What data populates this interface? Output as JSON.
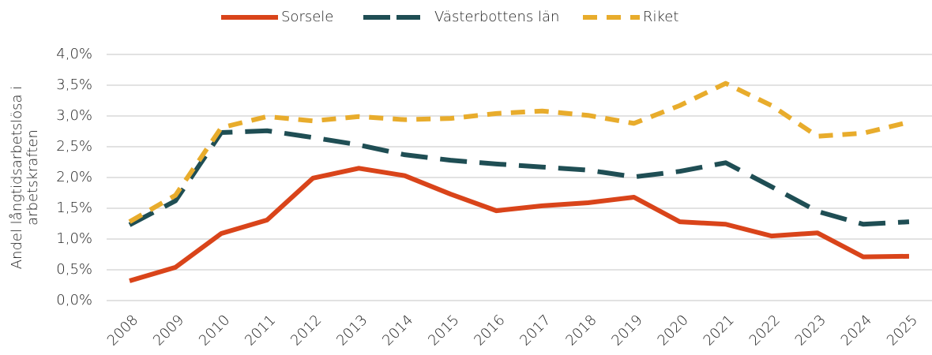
{
  "chart_data": {
    "type": "line",
    "ylabel": [
      "Andel långtidsarbetslösa i",
      "arbetskraften"
    ],
    "categories": [
      "2008",
      "2009",
      "2010",
      "2011",
      "2012",
      "2013",
      "2014",
      "2015",
      "2016",
      "2017",
      "2018",
      "2019",
      "2020",
      "2021",
      "2022",
      "2023",
      "2024",
      "2025"
    ],
    "series": [
      {
        "name": "Sorsele",
        "color": "#d9441a",
        "dash": "solid",
        "values": [
          0.32,
          0.54,
          1.09,
          1.31,
          1.99,
          2.15,
          2.03,
          1.73,
          1.46,
          1.54,
          1.59,
          1.68,
          1.28,
          1.24,
          1.05,
          1.1,
          0.71,
          0.72
        ]
      },
      {
        "name": "Västerbottens län",
        "color": "#1f4e54",
        "dash": "long",
        "values": [
          1.23,
          1.62,
          2.73,
          2.76,
          2.65,
          2.53,
          2.37,
          2.28,
          2.22,
          2.17,
          2.12,
          2.01,
          2.1,
          2.24,
          1.85,
          1.45,
          1.24,
          1.28
        ]
      },
      {
        "name": "Riket",
        "color": "#e8ac2c",
        "dash": "short",
        "values": [
          1.28,
          1.71,
          2.81,
          2.99,
          2.92,
          2.99,
          2.94,
          2.96,
          3.04,
          3.08,
          3.01,
          2.88,
          3.17,
          3.53,
          3.17,
          2.67,
          2.72,
          2.9
        ]
      }
    ],
    "ylim": [
      0,
      4
    ],
    "yticks": [
      {
        "value": 0,
        "label": "0,0%"
      },
      {
        "value": 0.5,
        "label": "0,5%"
      },
      {
        "value": 1,
        "label": "1,0%"
      },
      {
        "value": 1.5,
        "label": "1,5%"
      },
      {
        "value": 2,
        "label": "2,0%"
      },
      {
        "value": 2.5,
        "label": "2,5%"
      },
      {
        "value": 3,
        "label": "3,0%"
      },
      {
        "value": 3.5,
        "label": "3,5%"
      },
      {
        "value": 4,
        "label": "4,0%"
      }
    ],
    "grid": true,
    "legend": "top"
  }
}
